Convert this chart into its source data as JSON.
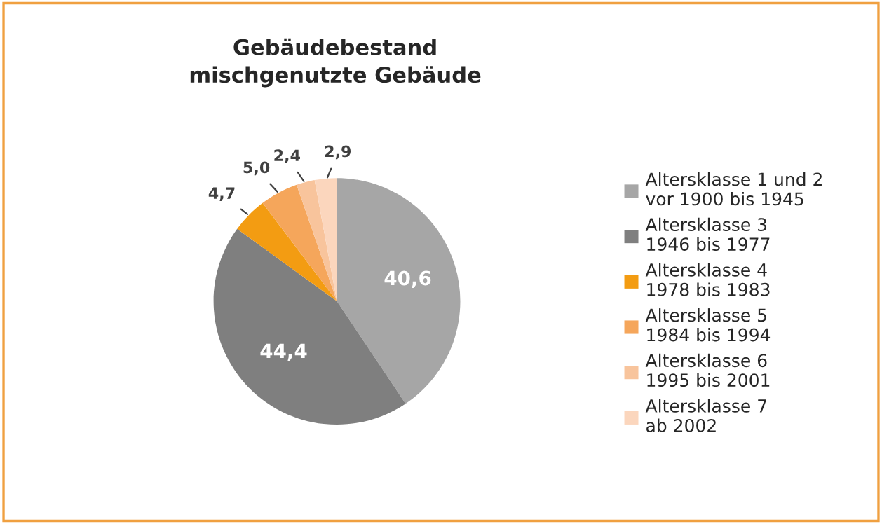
{
  "chart_data": {
    "type": "pie",
    "title": "Gebäudebestand\nmischgenutzte Gebäude",
    "categories": [
      "Altersklasse 1 und 2\nvor 1900 bis 1945",
      "Altersklasse 3\n1946 bis 1977",
      "Altersklasse 4\n1978 bis 1983",
      "Altersklasse 5\n1984 bis 1994",
      "Altersklasse 6\n1995 bis 2001",
      "Altersklasse 7\nab 2002"
    ],
    "values": [
      40.6,
      44.4,
      4.7,
      5.0,
      2.4,
      2.9
    ],
    "value_labels": [
      "40,6",
      "44,4",
      "4,7",
      "5,0",
      "2,4",
      "2,9"
    ],
    "colors": [
      "#a6a6a6",
      "#7f7f7f",
      "#f39c12",
      "#f5a65b",
      "#f8c49c",
      "#fbd6bd"
    ],
    "legend": "right"
  }
}
